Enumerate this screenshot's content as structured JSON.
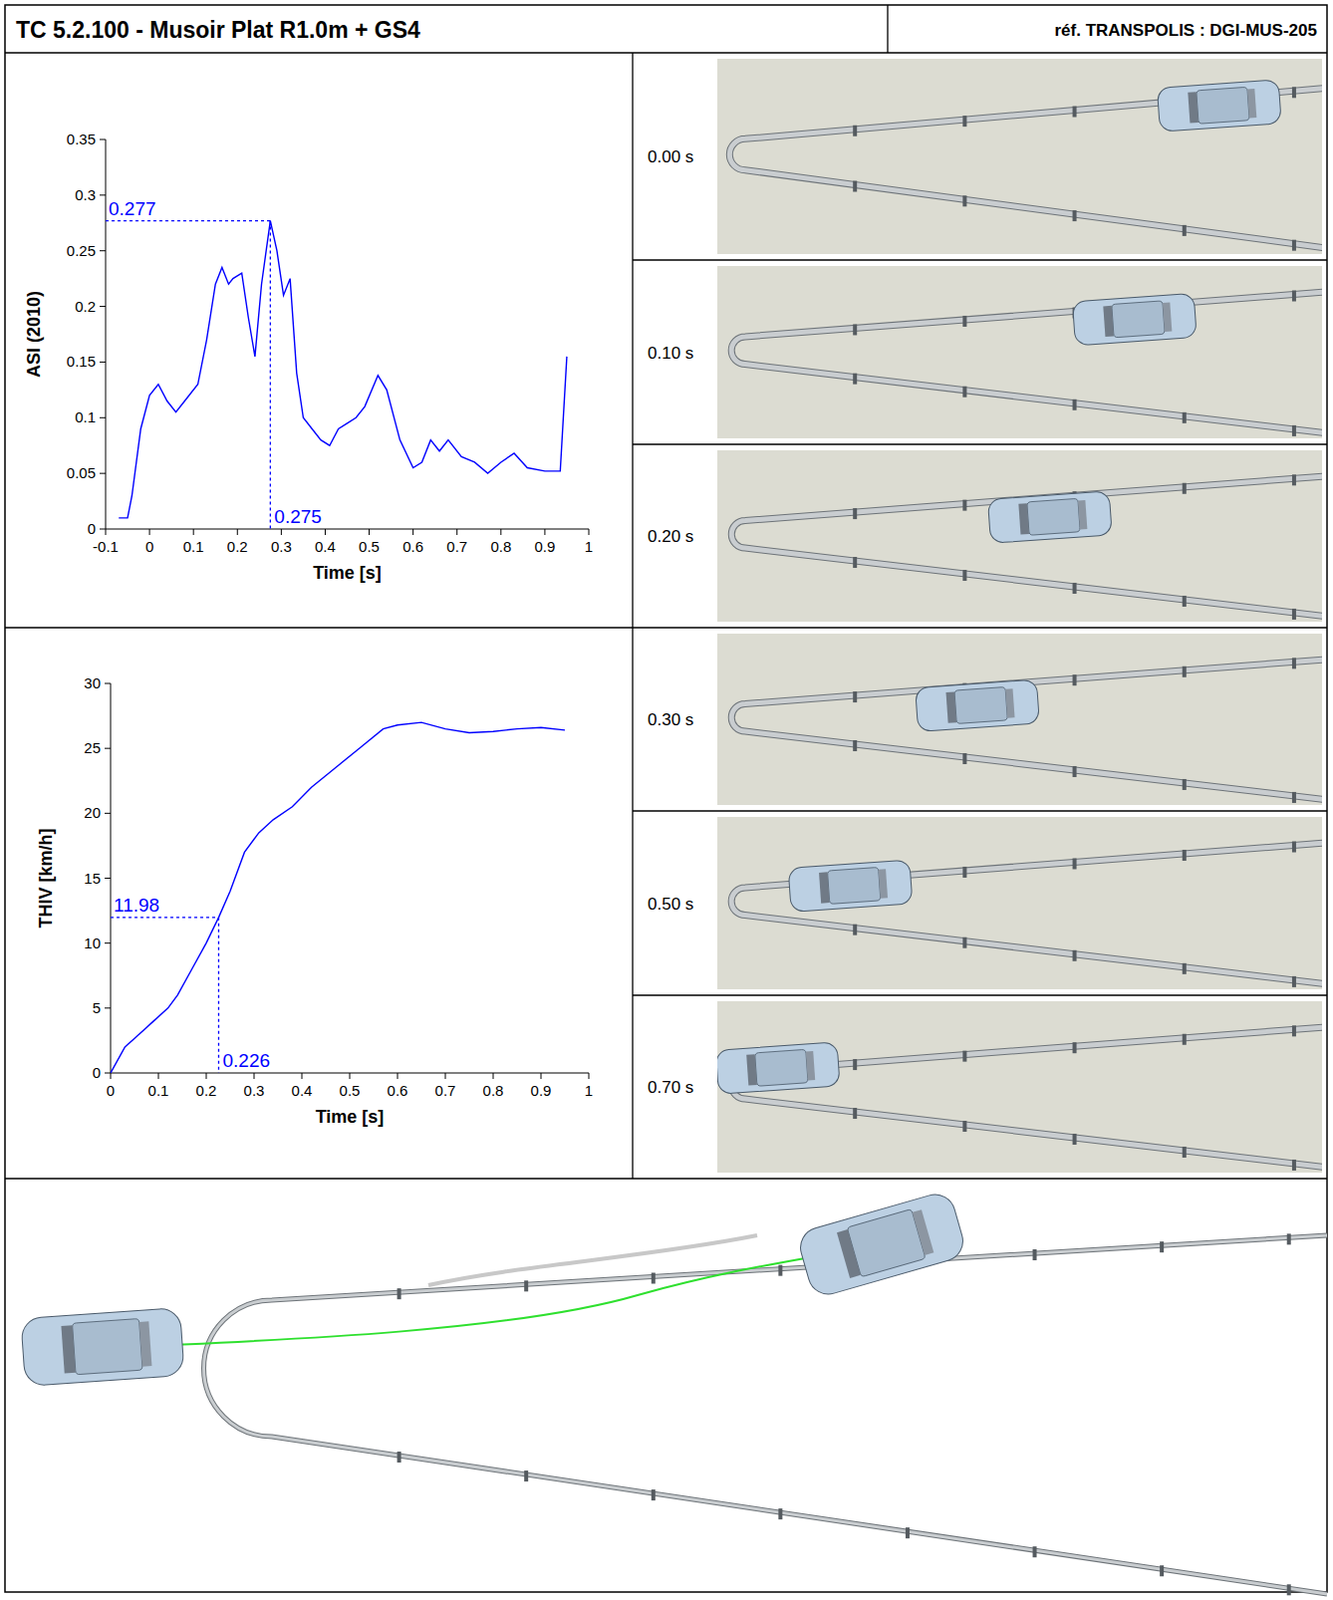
{
  "header": {
    "title": "TC 5.2.100 - Musoir Plat R1.0m + GS4",
    "reference": "réf. TRANSPOLIS : DGI-MUS-205"
  },
  "chart_data": [
    {
      "type": "line",
      "y_label": "ASI (2010)",
      "x_label": "Time [s]",
      "x": [
        -0.07,
        -0.05,
        -0.04,
        -0.02,
        0.0,
        0.02,
        0.04,
        0.06,
        0.08,
        0.11,
        0.13,
        0.15,
        0.165,
        0.18,
        0.19,
        0.21,
        0.225,
        0.24,
        0.255,
        0.275,
        0.29,
        0.305,
        0.32,
        0.335,
        0.35,
        0.37,
        0.39,
        0.41,
        0.43,
        0.45,
        0.47,
        0.49,
        0.52,
        0.54,
        0.57,
        0.6,
        0.62,
        0.64,
        0.66,
        0.68,
        0.71,
        0.74,
        0.77,
        0.8,
        0.83,
        0.86,
        0.9,
        0.935,
        0.95
      ],
      "series": [
        {
          "color": "#0000ff",
          "values": [
            0.01,
            0.01,
            0.03,
            0.09,
            0.12,
            0.13,
            0.115,
            0.105,
            0.115,
            0.13,
            0.17,
            0.22,
            0.235,
            0.22,
            0.225,
            0.23,
            0.19,
            0.155,
            0.22,
            0.277,
            0.25,
            0.21,
            0.225,
            0.14,
            0.1,
            0.09,
            0.08,
            0.075,
            0.09,
            0.095,
            0.1,
            0.11,
            0.138,
            0.125,
            0.08,
            0.055,
            0.06,
            0.08,
            0.07,
            0.08,
            0.065,
            0.06,
            0.05,
            0.06,
            0.068,
            0.055,
            0.052,
            0.052,
            0.155
          ]
        }
      ],
      "xlim": [
        -0.1,
        1
      ],
      "ylim": [
        0,
        0.35
      ],
      "xticks": [
        -0.1,
        0,
        0.1,
        0.2,
        0.3,
        0.4,
        0.5,
        0.6,
        0.7,
        0.8,
        0.9,
        1
      ],
      "yticks": [
        0,
        0.05,
        0.1,
        0.15,
        0.2,
        0.25,
        0.3,
        0.35
      ],
      "annotations": [
        {
          "x": 0.275,
          "y": 0.277,
          "x_label": "0.275",
          "y_label": "0.277"
        }
      ]
    },
    {
      "type": "line",
      "y_label": "THIV [km/h]",
      "x_label": "Time [s]",
      "x": [
        0,
        0.03,
        0.06,
        0.09,
        0.12,
        0.14,
        0.17,
        0.2,
        0.226,
        0.25,
        0.28,
        0.31,
        0.34,
        0.38,
        0.42,
        0.47,
        0.52,
        0.57,
        0.6,
        0.65,
        0.7,
        0.75,
        0.8,
        0.85,
        0.9,
        0.95
      ],
      "series": [
        {
          "color": "#0000ff",
          "values": [
            0,
            2,
            3,
            4,
            5,
            6,
            8,
            10,
            11.98,
            14,
            17,
            18.5,
            19.5,
            20.5,
            22,
            23.5,
            25,
            26.5,
            26.8,
            27,
            26.5,
            26.2,
            26.3,
            26.5,
            26.6,
            26.4
          ]
        }
      ],
      "xlim": [
        0,
        1
      ],
      "ylim": [
        0,
        30
      ],
      "xticks": [
        0,
        0.1,
        0.2,
        0.3,
        0.4,
        0.5,
        0.6,
        0.7,
        0.8,
        0.9,
        1
      ],
      "yticks": [
        0,
        5,
        10,
        15,
        20,
        25,
        30
      ],
      "annotations": [
        {
          "x": 0.226,
          "y": 11.98,
          "x_label": "0.226",
          "y_label": "11.98"
        }
      ]
    }
  ],
  "snapshots": [
    {
      "time_label": "0.00 s"
    },
    {
      "time_label": "0.10 s"
    },
    {
      "time_label": "0.20 s"
    },
    {
      "time_label": "0.30 s"
    },
    {
      "time_label": "0.50 s"
    },
    {
      "time_label": "0.70 s"
    }
  ]
}
